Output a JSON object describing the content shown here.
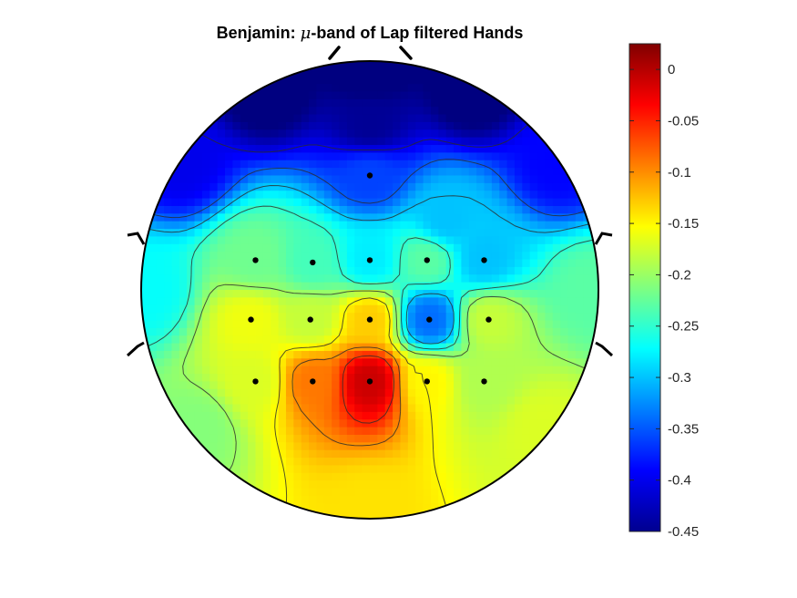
{
  "chart_data": {
    "type": "heatmap",
    "subtype": "eeg-topoplot",
    "title": {
      "prefix": "Benjamin: ",
      "symbol": "μ",
      "suffix": "-band of Lap filtered Hands"
    },
    "colormap": "jet",
    "clim": [
      -0.45,
      0.025
    ],
    "colorbar": {
      "location": "right",
      "ticks": [
        0,
        -0.05,
        -0.1,
        -0.15,
        -0.2,
        -0.25,
        -0.3,
        -0.35,
        -0.4,
        -0.45
      ],
      "tick_labels": [
        "0",
        "-0.05",
        "-0.1",
        "-0.15",
        "-0.2",
        "-0.25",
        "-0.3",
        "-0.35",
        "-0.4",
        "-0.45"
      ]
    },
    "contour_levels": [
      -0.4,
      -0.35,
      -0.3,
      -0.25,
      -0.2,
      -0.15,
      -0.1,
      -0.05
    ],
    "electrodes": [
      {
        "x": 0.0,
        "y": 0.5,
        "value": -0.36
      },
      {
        "x": -0.5,
        "y": 0.13,
        "value": -0.22
      },
      {
        "x": -0.25,
        "y": 0.12,
        "value": -0.24
      },
      {
        "x": 0.0,
        "y": 0.13,
        "value": -0.28
      },
      {
        "x": 0.25,
        "y": 0.13,
        "value": -0.23
      },
      {
        "x": 0.5,
        "y": 0.13,
        "value": -0.3
      },
      {
        "x": -0.52,
        "y": -0.13,
        "value": -0.16
      },
      {
        "x": -0.26,
        "y": -0.13,
        "value": -0.18
      },
      {
        "x": 0.0,
        "y": -0.13,
        "value": -0.13
      },
      {
        "x": 0.26,
        "y": -0.13,
        "value": -0.34
      },
      {
        "x": 0.52,
        "y": -0.13,
        "value": -0.18
      },
      {
        "x": -0.5,
        "y": -0.4,
        "value": -0.17
      },
      {
        "x": -0.25,
        "y": -0.4,
        "value": -0.09
      },
      {
        "x": 0.0,
        "y": -0.4,
        "value": -0.01
      },
      {
        "x": 0.25,
        "y": -0.4,
        "value": -0.15
      },
      {
        "x": 0.5,
        "y": -0.4,
        "value": -0.19
      }
    ]
  }
}
